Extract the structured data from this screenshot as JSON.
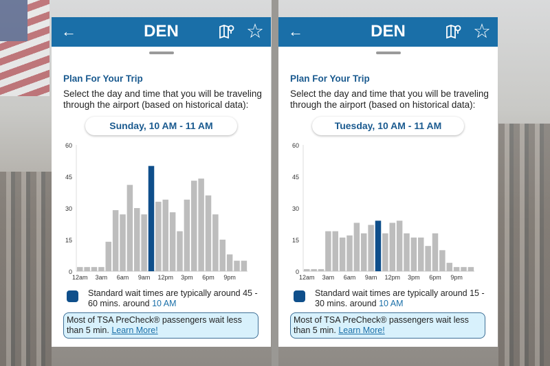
{
  "panels": [
    {
      "header": {
        "title": "DEN",
        "back_icon": "arrow-left-icon",
        "map_icon": "map-pin-icon",
        "favorite_icon": "star-outline-icon"
      },
      "section_title": "Plan For Your Trip",
      "description": "Select the day and time that you will be traveling through the airport (based on historical data):",
      "selected_time": "Sunday, 10 AM - 11 AM",
      "legend": {
        "text": "Standard wait times are typically around 45 - 60 mins. around ",
        "highlight": "10 AM"
      },
      "precheck": {
        "text": "Most of TSA PreCheck® passengers wait less than 5 min. ",
        "link": "Learn More!"
      }
    },
    {
      "header": {
        "title": "DEN",
        "back_icon": "arrow-left-icon",
        "map_icon": "map-pin-icon",
        "favorite_icon": "star-outline-icon"
      },
      "section_title": "Plan For Your Trip",
      "description": "Select the day and time that you will be traveling through the airport (based on historical data):",
      "selected_time": "Tuesday, 10 AM - 11 AM",
      "legend": {
        "text": "Standard wait times are typically around 15 - 30 mins. around ",
        "highlight": "10 AM"
      },
      "precheck": {
        "text": "Most of TSA PreCheck® passengers wait less than 5 min. ",
        "link": "Learn More!"
      }
    }
  ],
  "colors": {
    "header": "#1a6fa8",
    "bar": "#bdbdbd",
    "bar_selected": "#0f4f8b",
    "precheck_bg": "#d8f1fc"
  },
  "chart_data": [
    {
      "type": "bar",
      "ylim": [
        0,
        60
      ],
      "yticks": [
        "0",
        "15",
        "30",
        "45",
        "60"
      ],
      "xtick_labels": [
        "12am",
        "3am",
        "6am",
        "9am",
        "12pm",
        "3pm",
        "6pm",
        "9pm"
      ],
      "selected_index": 10,
      "values": [
        2,
        2,
        2,
        2,
        14,
        29,
        27,
        41,
        30,
        27,
        50,
        33,
        34,
        28,
        19,
        34,
        43,
        44,
        36,
        27,
        15,
        8,
        5,
        5
      ]
    },
    {
      "type": "bar",
      "ylim": [
        0,
        60
      ],
      "yticks": [
        "0",
        "15",
        "30",
        "45",
        "60"
      ],
      "xtick_labels": [
        "12am",
        "3am",
        "6am",
        "9am",
        "12pm",
        "3pm",
        "6pm",
        "9pm"
      ],
      "selected_index": 10,
      "values": [
        1,
        1,
        1,
        19,
        19,
        16,
        17,
        23,
        18,
        22,
        24,
        18,
        23,
        24,
        18,
        16,
        16,
        12,
        18,
        10,
        4,
        2,
        2,
        2
      ]
    }
  ]
}
